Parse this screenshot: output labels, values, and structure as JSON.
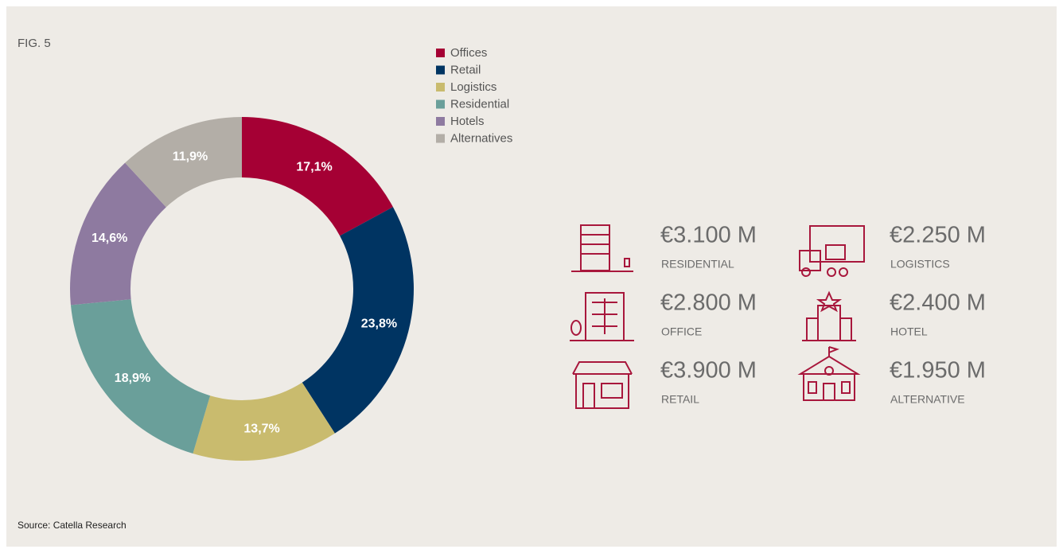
{
  "figure_label": "FIG. 5",
  "chart_data": {
    "type": "pie",
    "donut": true,
    "categories": [
      "Offices",
      "Retail",
      "Logistics",
      "Residential",
      "Hotels",
      "Alternatives"
    ],
    "values": [
      17.1,
      23.8,
      13.7,
      18.9,
      14.6,
      11.9
    ],
    "value_labels": [
      "17,1%",
      "23,8%",
      "13,7%",
      "18,9%",
      "14,6%",
      "11,9%"
    ],
    "colors": [
      "#a50034",
      "#003462",
      "#c9bb6e",
      "#6a9f9a",
      "#8e7aa0",
      "#b3aea7"
    ]
  },
  "stats": [
    {
      "value": "€3.100 M",
      "label": "RESIDENTIAL"
    },
    {
      "value": "€2.250 M",
      "label": "LOGISTICS"
    },
    {
      "value": "€2.800 M",
      "label": "OFFICE"
    },
    {
      "value": "€2.400 M",
      "label": "HOTEL"
    },
    {
      "value": "€3.900 M",
      "label": "RETAIL"
    },
    {
      "value": "€1.950 M",
      "label": "ALTERNATIVE"
    }
  ],
  "source": "Source: Catella Research"
}
